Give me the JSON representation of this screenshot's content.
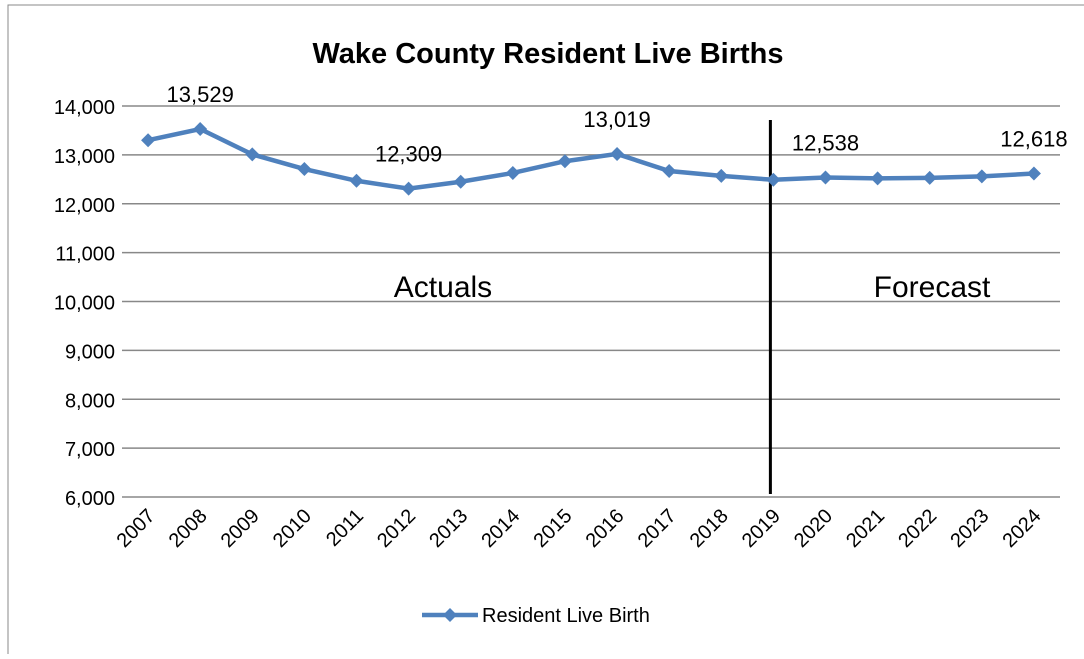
{
  "chart_data": {
    "type": "line",
    "title": "Wake County Resident Live Births",
    "categories": [
      "2007",
      "2008",
      "2009",
      "2010",
      "2011",
      "2012",
      "2013",
      "2014",
      "2015",
      "2016",
      "2017",
      "2018",
      "2019",
      "2020",
      "2021",
      "2022",
      "2023",
      "2024"
    ],
    "series": [
      {
        "name": "Resident Live Birth",
        "color": "#4f81bd",
        "values": [
          13300,
          13529,
          13010,
          12710,
          12470,
          12309,
          12450,
          12630,
          12870,
          13019,
          12670,
          12570,
          12490,
          12538,
          12520,
          12530,
          12560,
          12618
        ],
        "value_labels": [
          null,
          "13,529",
          null,
          null,
          null,
          "12,309",
          null,
          null,
          null,
          "13,019",
          null,
          null,
          null,
          "12,538",
          null,
          null,
          null,
          "12,618"
        ]
      }
    ],
    "ylim": [
      6000,
      14000
    ],
    "yticks": [
      {
        "value": 6000,
        "label": "6,000"
      },
      {
        "value": 7000,
        "label": "7,000"
      },
      {
        "value": 8000,
        "label": "8,000"
      },
      {
        "value": 9000,
        "label": "9,000"
      },
      {
        "value": 10000,
        "label": "10,000"
      },
      {
        "value": 11000,
        "label": "11,000"
      },
      {
        "value": 12000,
        "label": "12,000"
      },
      {
        "value": 13000,
        "label": "13,000"
      },
      {
        "value": 14000,
        "label": "14,000"
      }
    ],
    "grid": true,
    "legend": "bottom",
    "divider": "2019",
    "annotations": [
      "Actuals",
      "Forecast"
    ]
  }
}
